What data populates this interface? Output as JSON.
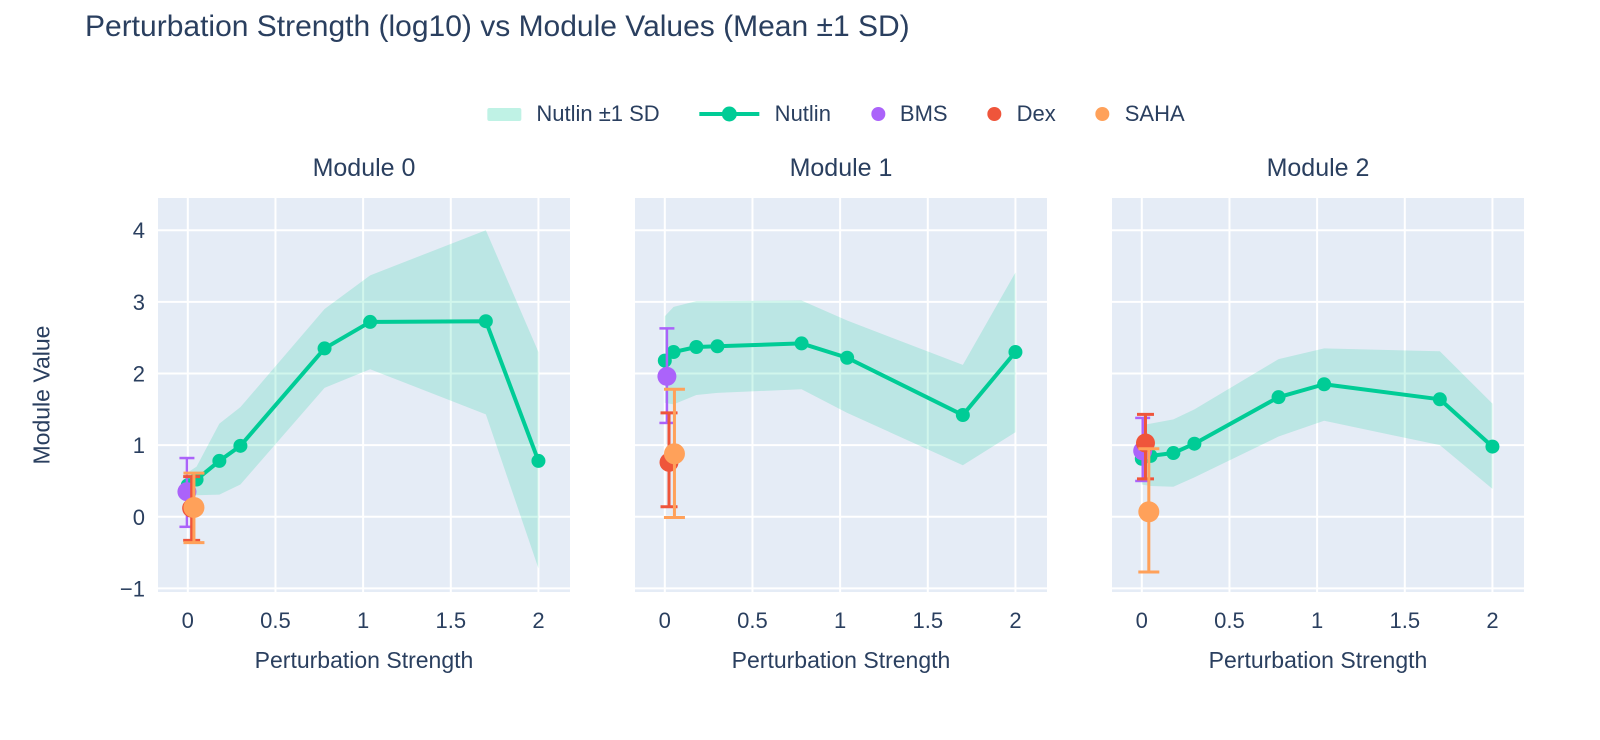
{
  "title": "Perturbation Strength (log10) vs Module Values (Mean ±1 SD)",
  "style": {
    "text_color": "#2a3f5f",
    "plot_bg": "#e5ecf6",
    "grid_color": "#ffffff",
    "background": "#ffffff"
  },
  "legend": [
    {
      "label": "Nutlin ±1 SD",
      "swatch": "band",
      "color": "#00cc96"
    },
    {
      "label": "Nutlin",
      "swatch": "line",
      "color": "#00cc96"
    },
    {
      "label": "BMS",
      "swatch": "dot",
      "color": "#ab63fa"
    },
    {
      "label": "Dex",
      "swatch": "dot",
      "color": "#ef553b"
    },
    {
      "label": "SAHA",
      "swatch": "dot",
      "color": "#ffa15a"
    }
  ],
  "axes": {
    "x_label": "Perturbation Strength",
    "y_label": "Module Value",
    "x_ticks": [
      0,
      0.5,
      1,
      1.5,
      2
    ],
    "y_ticks": [
      -1,
      0,
      1,
      2,
      3,
      4
    ],
    "x_range": [
      -0.17,
      2.18
    ],
    "y_range": [
      -1.05,
      4.45
    ],
    "grid": true
  },
  "chart_data": [
    {
      "type": "line",
      "title": "Module 0",
      "x": [
        0,
        0.05,
        0.18,
        0.3,
        0.78,
        1.04,
        1.7,
        2
      ],
      "series": [
        {
          "name": "Nutlin",
          "mean": [
            0.44,
            0.52,
            0.78,
            0.99,
            2.35,
            2.72,
            2.73,
            0.78
          ],
          "upper": [
            0.62,
            0.7,
            1.3,
            1.53,
            2.9,
            3.37,
            4.0,
            2.3
          ],
          "lower": [
            0.27,
            0.3,
            0.31,
            0.45,
            1.8,
            2.06,
            1.43,
            -0.72
          ]
        }
      ],
      "points": [
        {
          "name": "BMS",
          "x": -0.005,
          "y": 0.35,
          "y_lo": -0.14,
          "y_hi": 0.82
        },
        {
          "name": "Dex",
          "x": 0.022,
          "y": 0.12,
          "y_lo": -0.33,
          "y_hi": 0.56
        },
        {
          "name": "SAHA",
          "x": 0.035,
          "y": 0.13,
          "y_lo": -0.36,
          "y_hi": 0.61
        }
      ]
    },
    {
      "type": "line",
      "title": "Module 1",
      "x": [
        0,
        0.05,
        0.18,
        0.3,
        0.78,
        1.04,
        1.7,
        2
      ],
      "series": [
        {
          "name": "Nutlin",
          "mean": [
            2.18,
            2.3,
            2.37,
            2.38,
            2.42,
            2.22,
            1.42,
            2.3
          ],
          "upper": [
            2.8,
            2.93,
            3.01,
            3.01,
            3.02,
            2.74,
            2.12,
            3.41
          ],
          "lower": [
            1.59,
            1.57,
            1.7,
            1.73,
            1.78,
            1.45,
            0.72,
            1.18
          ]
        }
      ],
      "points": [
        {
          "name": "BMS",
          "x": 0.012,
          "y": 1.96,
          "y_lo": 1.31,
          "y_hi": 2.63
        },
        {
          "name": "Dex",
          "x": 0.024,
          "y": 0.76,
          "y_lo": 0.14,
          "y_hi": 1.45
        },
        {
          "name": "SAHA",
          "x": 0.055,
          "y": 0.88,
          "y_lo": -0.01,
          "y_hi": 1.78
        }
      ]
    },
    {
      "type": "line",
      "title": "Module 2",
      "x": [
        0,
        0.05,
        0.18,
        0.3,
        0.78,
        1.04,
        1.7,
        2
      ],
      "series": [
        {
          "name": "Nutlin",
          "mean": [
            0.81,
            0.85,
            0.89,
            1.02,
            1.67,
            1.85,
            1.64,
            0.98
          ],
          "upper": [
            1.28,
            1.3,
            1.36,
            1.5,
            2.2,
            2.35,
            2.31,
            1.58
          ],
          "lower": [
            0.45,
            0.43,
            0.42,
            0.55,
            1.12,
            1.34,
            1.0,
            0.39
          ]
        }
      ],
      "points": [
        {
          "name": "BMS",
          "x": 0.005,
          "y": 0.92,
          "y_lo": 0.5,
          "y_hi": 1.38
        },
        {
          "name": "Dex",
          "x": 0.021,
          "y": 1.03,
          "y_lo": 0.53,
          "y_hi": 1.43
        },
        {
          "name": "SAHA",
          "x": 0.04,
          "y": 0.07,
          "y_lo": -0.77,
          "y_hi": 0.95
        }
      ]
    }
  ]
}
